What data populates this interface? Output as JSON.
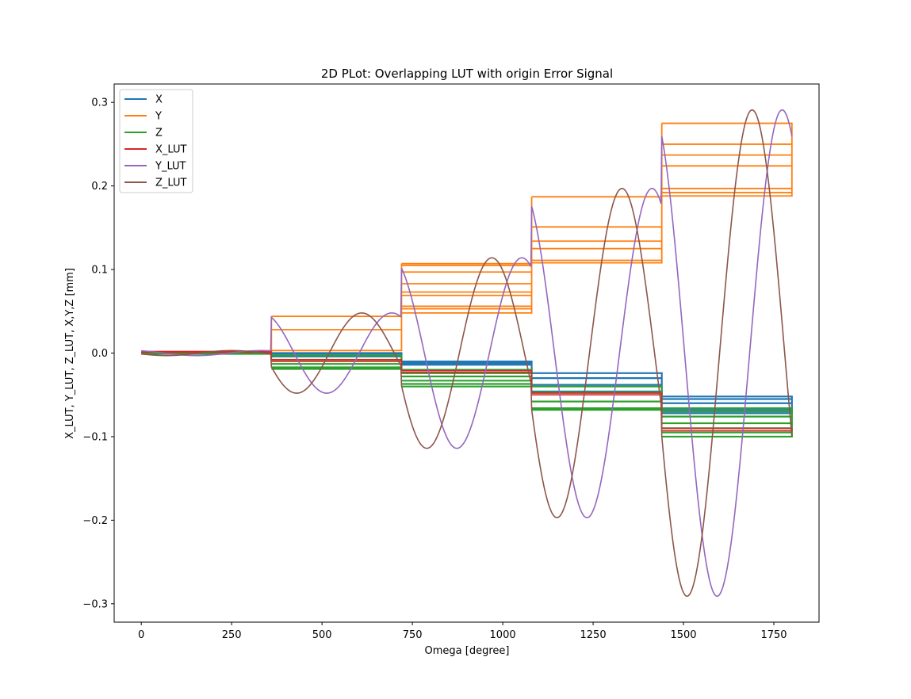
{
  "chart_data": {
    "type": "line",
    "title": "2D PLot: Overlapping LUT with origin Error Signal",
    "xlabel": "Omega [degree]",
    "ylabel": "X_LUT, Y_LUT, Z_LUT, X,Y,Z [mm]",
    "xlim": [
      -75,
      1875
    ],
    "ylim": [
      -0.322,
      0.322
    ],
    "xticks": [
      0,
      250,
      500,
      750,
      1000,
      1250,
      1500,
      1750
    ],
    "yticks": [
      -0.3,
      -0.2,
      -0.1,
      0.0,
      0.1,
      0.2,
      0.3
    ],
    "ytick_labels": [
      "−0.3",
      "−0.2",
      "−0.1",
      "0.0",
      "0.1",
      "0.2",
      "0.3"
    ],
    "grid": false,
    "legend_position": "upper-left",
    "colors": {
      "X": "#1f77b4",
      "Y": "#ff7f0e",
      "Z": "#2ca02c",
      "X_LUT": "#d62728",
      "Y_LUT": "#9467bd",
      "Z_LUT": "#8c564b"
    },
    "segments": [
      {
        "x_range": [
          0,
          360
        ],
        "amplitude": 0.003
      },
      {
        "x_range": [
          360,
          720
        ],
        "amplitude": 0.048
      },
      {
        "x_range": [
          720,
          1080
        ],
        "amplitude": 0.114
      },
      {
        "x_range": [
          1080,
          1440
        ],
        "amplitude": 0.197
      },
      {
        "x_range": [
          1440,
          1800
        ],
        "amplitude": 0.291
      }
    ],
    "series": [
      {
        "name": "X",
        "step_levels": [
          [
            0.0,
            0.0
          ],
          [
            0.0,
            -0.001,
            -0.004
          ],
          [
            -0.01,
            -0.012,
            -0.014
          ],
          [
            -0.024,
            -0.03,
            -0.038,
            -0.046
          ],
          [
            -0.052,
            -0.055,
            -0.06,
            -0.068,
            -0.072
          ]
        ]
      },
      {
        "name": "Y",
        "step_levels": [
          [
            0.0,
            0.001
          ],
          [
            0.044,
            0.028,
            0.003
          ],
          [
            0.107,
            0.105,
            0.097,
            0.083,
            0.073,
            0.069,
            0.056,
            0.053,
            0.048
          ],
          [
            0.187,
            0.151,
            0.134,
            0.125,
            0.111,
            0.108
          ],
          [
            0.275,
            0.25,
            0.237,
            0.224,
            0.197,
            0.192,
            0.188
          ]
        ]
      },
      {
        "name": "Z",
        "step_levels": [
          [
            0.0,
            -0.001
          ],
          [
            -0.003,
            -0.008,
            -0.013,
            -0.017,
            -0.019
          ],
          [
            -0.02,
            -0.024,
            -0.028,
            -0.033,
            -0.037,
            -0.04
          ],
          [
            -0.04,
            -0.047,
            -0.058,
            -0.066,
            -0.068
          ],
          [
            -0.066,
            -0.07,
            -0.076,
            -0.084,
            -0.09,
            -0.095,
            -0.1
          ]
        ]
      },
      {
        "name": "X_LUT",
        "step_levels": [
          [
            0.002,
            0.001
          ],
          [
            -0.008,
            -0.01
          ],
          [
            -0.021,
            -0.023
          ],
          [
            -0.048,
            -0.05
          ],
          [
            -0.09,
            -0.093
          ]
        ]
      },
      {
        "name": "Y_LUT",
        "shape": "cosine-based, negative first lobe",
        "peaks": [
          0.003,
          0.048,
          0.114,
          0.197,
          0.291
        ]
      },
      {
        "name": "Z_LUT",
        "shape": "sine-based, negative first lobe",
        "peaks": [
          0.003,
          0.048,
          0.114,
          0.197,
          0.291
        ]
      }
    ]
  }
}
